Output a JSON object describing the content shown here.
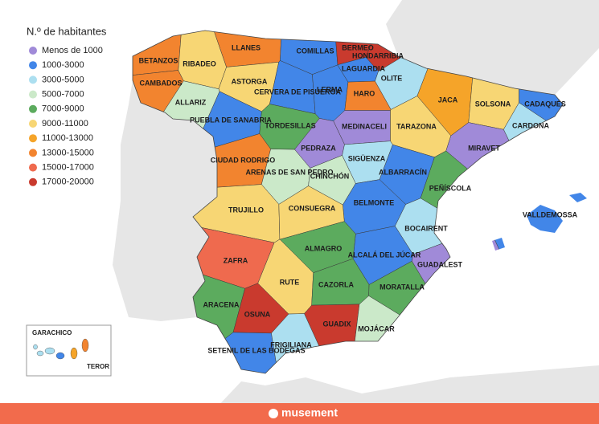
{
  "legend": {
    "title": "N.º de habitantes",
    "items": [
      {
        "label": "Menos de 1000",
        "color": "#a08ad8"
      },
      {
        "label": "1000-3000",
        "color": "#4286e8"
      },
      {
        "label": "3000-5000",
        "color": "#acdff0"
      },
      {
        "label": "5000-7000",
        "color": "#cbe9c9"
      },
      {
        "label": "7000-9000",
        "color": "#5cab5e"
      },
      {
        "label": "9000-11000",
        "color": "#f7d674"
      },
      {
        "label": "11000-13000",
        "color": "#f5a429"
      },
      {
        "label": "13000-15000",
        "color": "#f2842f"
      },
      {
        "label": "15000-17000",
        "color": "#ef6a4e"
      },
      {
        "label": "17000-20000",
        "color": "#c93a2e"
      }
    ]
  },
  "regions": [
    {
      "name": "BETANZOS",
      "color": "#f2842f"
    },
    {
      "name": "CAMBADOS",
      "color": "#f2842f"
    },
    {
      "name": "RIBADEO",
      "color": "#f7d674"
    },
    {
      "name": "LLANES",
      "color": "#f2842f"
    },
    {
      "name": "ASTORGA",
      "color": "#f7d674"
    },
    {
      "name": "ALLARIZ",
      "color": "#cbe9c9"
    },
    {
      "name": "COMILLAS",
      "color": "#4286e8"
    },
    {
      "name": "CERVERA DE PISUERGA",
      "color": "#4286e8"
    },
    {
      "name": "LERMA",
      "color": "#4286e8"
    },
    {
      "name": "BERMEO",
      "color": "#c93a2e"
    },
    {
      "name": "HONDARRIBIA",
      "color": "#c93a2e"
    },
    {
      "name": "LAGUARDIA",
      "color": "#4286e8"
    },
    {
      "name": "OLITE",
      "color": "#acdff0"
    },
    {
      "name": "HARO",
      "color": "#f2842f"
    },
    {
      "name": "JACA",
      "color": "#f5a429"
    },
    {
      "name": "SOLSONA",
      "color": "#f7d674"
    },
    {
      "name": "CADAQUÉS",
      "color": "#4286e8"
    },
    {
      "name": "CARDONA",
      "color": "#acdff0"
    },
    {
      "name": "PUEBLA DE SANABRIA",
      "color": "#4286e8"
    },
    {
      "name": "TORDESILLAS",
      "color": "#5cab5e"
    },
    {
      "name": "MEDINACELI",
      "color": "#a08ad8"
    },
    {
      "name": "TARAZONA",
      "color": "#f7d674"
    },
    {
      "name": "PEDRAZA",
      "color": "#a08ad8"
    },
    {
      "name": "MIRAVET",
      "color": "#a08ad8"
    },
    {
      "name": "SIGÜENZA",
      "color": "#acdff0"
    },
    {
      "name": "CIUDAD RODRIGO",
      "color": "#f2842f"
    },
    {
      "name": "ARENAS DE SAN PEDRO",
      "color": "#cbe9c9"
    },
    {
      "name": "CHINCHÓN",
      "color": "#cbe9c9"
    },
    {
      "name": "ALBARRACÍN",
      "color": "#4286e8"
    },
    {
      "name": "PEÑÍSCOLA",
      "color": "#5cab5e"
    },
    {
      "name": "BELMONTE",
      "color": "#4286e8"
    },
    {
      "name": "TRUJILLO",
      "color": "#f7d674"
    },
    {
      "name": "CONSUEGRA",
      "color": "#f7d674"
    },
    {
      "name": "VALLDEMOSSA",
      "color": "#4286e8"
    },
    {
      "name": "BOCAIRENT",
      "color": "#acdff0"
    },
    {
      "name": "ZAFRA",
      "color": "#ef6a4e"
    },
    {
      "name": "ALMAGRO",
      "color": "#5cab5e"
    },
    {
      "name": "ALCALÁ DEL JÚCAR",
      "color": "#4286e8"
    },
    {
      "name": "GUADALEST",
      "color": "#a08ad8"
    },
    {
      "name": "RUTE",
      "color": "#f7d674"
    },
    {
      "name": "CAZORLA",
      "color": "#5cab5e"
    },
    {
      "name": "MORATALLA",
      "color": "#5cab5e"
    },
    {
      "name": "ARACENA",
      "color": "#5cab5e"
    },
    {
      "name": "OSUNA",
      "color": "#c93a2e"
    },
    {
      "name": "GUADIX",
      "color": "#c93a2e"
    },
    {
      "name": "MOJÁCAR",
      "color": "#cbe9c9"
    },
    {
      "name": "SETENIL DE LAS BODEGAS",
      "color": "#4286e8"
    },
    {
      "name": "FRIGILIANA",
      "color": "#acdff0"
    }
  ],
  "inset": {
    "labels": [
      "GARACHICO",
      "TEROR"
    ]
  },
  "footer": {
    "brand": "musement"
  }
}
